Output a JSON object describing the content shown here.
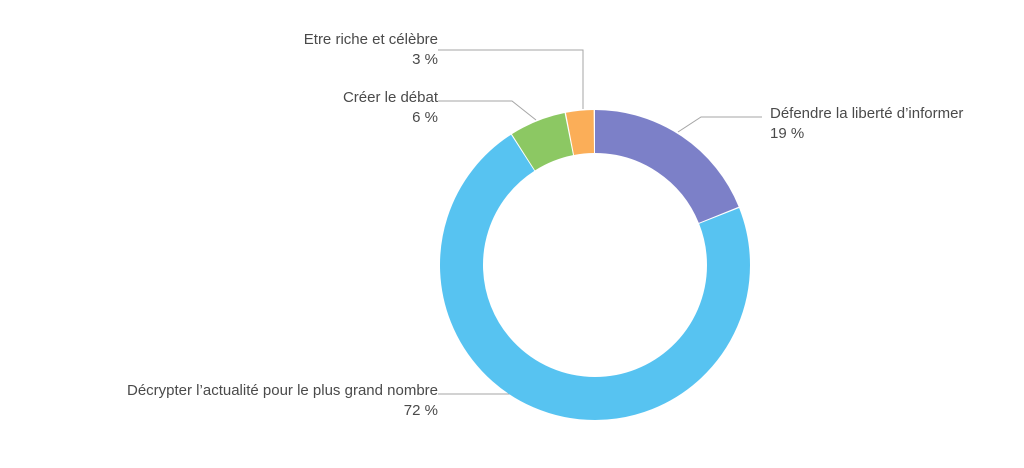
{
  "chart_data": {
    "type": "pie",
    "subtype": "donut",
    "title": "",
    "legend_position": "none",
    "start_angle_deg": 0,
    "direction": "clockwise",
    "units": "%",
    "segments": [
      {
        "id": "defendre",
        "label": "Défendre la liberté d’informer",
        "value": 19,
        "value_label": "19 %",
        "color": "#7c80c8"
      },
      {
        "id": "decrypter",
        "label": "Décrypter l’actualité pour le plus grand nombre",
        "value": 72,
        "value_label": "72 %",
        "color": "#57c3f1"
      },
      {
        "id": "creer",
        "label": "Créer le débat",
        "value": 6,
        "value_label": "6 %",
        "color": "#8cc863"
      },
      {
        "id": "riche",
        "label": "Etre riche et célèbre",
        "value": 3,
        "value_label": "3 %",
        "color": "#fbae58"
      }
    ],
    "colors": {
      "connector_line": "#a6a6a6",
      "label_text": "#4a4a4a",
      "background": "#ffffff"
    }
  }
}
